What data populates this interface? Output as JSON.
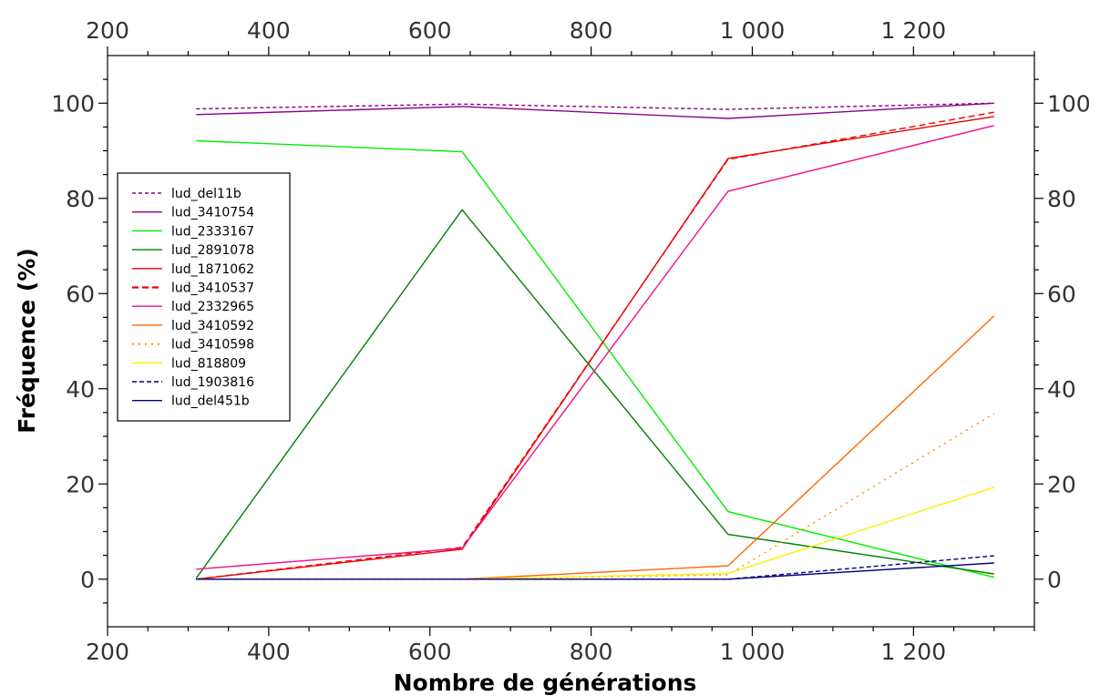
{
  "chart_data": {
    "type": "line",
    "xlabel": "Nombre de générations",
    "ylabel": "Fréquence (%)",
    "xlim": [
      200,
      1350
    ],
    "ylim": [
      -10,
      110
    ],
    "x_ticks": [
      200,
      400,
      600,
      800,
      1000,
      1200
    ],
    "x_tick_labels": [
      "200",
      "400",
      "600",
      "800",
      "1 000",
      "1 200"
    ],
    "y_ticks": [
      0,
      20,
      40,
      60,
      80,
      100
    ],
    "y_tick_labels": [
      "0",
      "20",
      "40",
      "60",
      "80",
      "100"
    ],
    "x": [
      310,
      640,
      970,
      1300
    ],
    "legend_position": "left",
    "grid": false,
    "series": [
      {
        "name": "lud_del11b",
        "values": [
          98.8,
          99.8,
          98.7,
          100
        ],
        "color": "#8B008B",
        "dash": "4,3",
        "width": 1.4
      },
      {
        "name": "lud_3410754",
        "values": [
          97.6,
          99.3,
          96.8,
          100
        ],
        "color": "#8B008B",
        "dash": "",
        "width": 1.4
      },
      {
        "name": "lud_2333167",
        "values": [
          92.1,
          89.8,
          14.2,
          0.4
        ],
        "color": "#00EE00",
        "dash": "",
        "width": 1.4
      },
      {
        "name": "lud_2891078",
        "values": [
          0.2,
          77.6,
          9.4,
          1.1
        ],
        "color": "#008000",
        "dash": "",
        "width": 1.4
      },
      {
        "name": "lud_1871062",
        "values": [
          0,
          6.3,
          88.4,
          97.2
        ],
        "color": "#EE0000",
        "dash": "",
        "width": 1.4
      },
      {
        "name": "lud_3410537",
        "values": [
          0,
          6.7,
          88.2,
          98.1
        ],
        "color": "#EE0000",
        "dash": "7,4",
        "width": 2.2
      },
      {
        "name": "lud_2332965",
        "values": [
          2.1,
          6.5,
          81.5,
          95.3
        ],
        "color": "#EE1188",
        "dash": "",
        "width": 1.4
      },
      {
        "name": "lud_3410592",
        "values": [
          0,
          0,
          2.8,
          55.3
        ],
        "color": "#FF6600",
        "dash": "",
        "width": 1.4
      },
      {
        "name": "lud_3410598",
        "values": [
          0,
          0,
          0.9,
          34.8
        ],
        "color": "#FF8C00",
        "dash": "2,5",
        "width": 2.0
      },
      {
        "name": "lud_818809",
        "values": [
          0,
          0,
          1.2,
          19.3
        ],
        "color": "#FFEE00",
        "dash": "",
        "width": 1.4
      },
      {
        "name": "lud_1903816",
        "values": [
          0,
          0,
          0,
          4.9
        ],
        "color": "#000080",
        "dash": "5,3",
        "width": 1.4
      },
      {
        "name": "lud_del451b",
        "values": [
          0,
          0,
          0,
          3.4
        ],
        "color": "#000080",
        "dash": "",
        "width": 1.4
      }
    ]
  }
}
